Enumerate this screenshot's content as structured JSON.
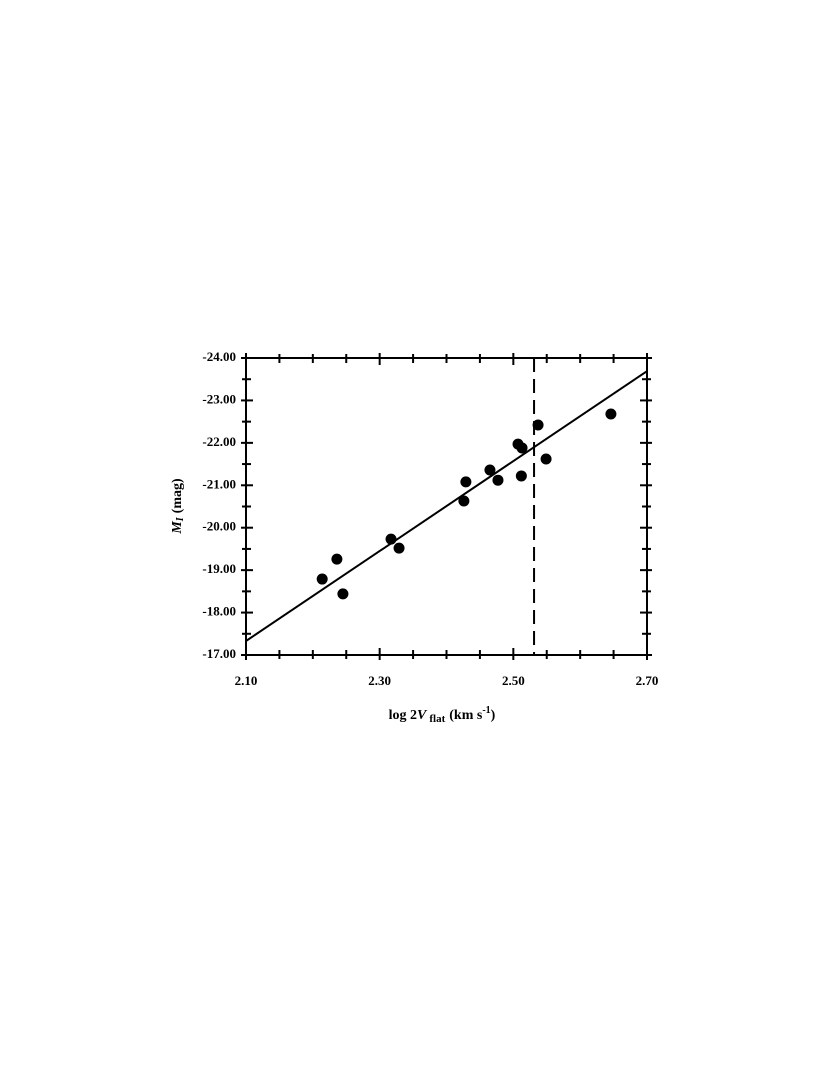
{
  "chart_data": {
    "type": "scatter",
    "xlabel": {
      "prefix": "log 2",
      "symbol": "V",
      "subscript": "flat",
      "unit": "(km s",
      "exponent": "-1",
      "close": ")"
    },
    "ylabel": {
      "symbol": "M",
      "subscript": "I",
      "unit": "(mag)"
    },
    "xlim": [
      2.1,
      2.7
    ],
    "ylim": [
      -17,
      -24
    ],
    "xticks": [
      {
        "value": 2.1,
        "label": "2.10"
      },
      {
        "value": 2.3,
        "label": "2.30"
      },
      {
        "value": 2.5,
        "label": "2.50"
      },
      {
        "value": 2.7,
        "label": "2.70"
      }
    ],
    "yticks": [
      {
        "value": -24,
        "label": "-24.00"
      },
      {
        "value": -23,
        "label": "-23.00"
      },
      {
        "value": -22,
        "label": "-22.00"
      },
      {
        "value": -21,
        "label": "-21.00"
      },
      {
        "value": -20,
        "label": "-20.00"
      },
      {
        "value": -19,
        "label": "-19.00"
      },
      {
        "value": -18,
        "label": "-18.00"
      },
      {
        "value": -17,
        "label": "-17.00"
      }
    ],
    "xminor_ticks": [
      2.15,
      2.2,
      2.25,
      2.35,
      2.4,
      2.45,
      2.55,
      2.6,
      2.65
    ],
    "yminor_ticks": [
      -23.5,
      -22.5,
      -21.5,
      -20.5,
      -19.5,
      -18.5,
      -17.5
    ],
    "color": "#000000",
    "series": [
      {
        "x": [
          2.214,
          2.236,
          2.245,
          2.317,
          2.329,
          2.426,
          2.429,
          2.465,
          2.477,
          2.507,
          2.513,
          2.512,
          2.537,
          2.549,
          2.646
        ],
        "values": [
          -18.79,
          -19.26,
          -18.44,
          -19.73,
          -19.52,
          -20.63,
          -21.08,
          -21.36,
          -21.12,
          -21.97,
          -21.88,
          -21.22,
          -22.42,
          -21.62,
          -22.68
        ]
      }
    ],
    "fit_line": {
      "x": [
        2.1,
        2.7
      ],
      "values": [
        -17.33,
        -23.69
      ]
    },
    "vline": 2.531
  }
}
